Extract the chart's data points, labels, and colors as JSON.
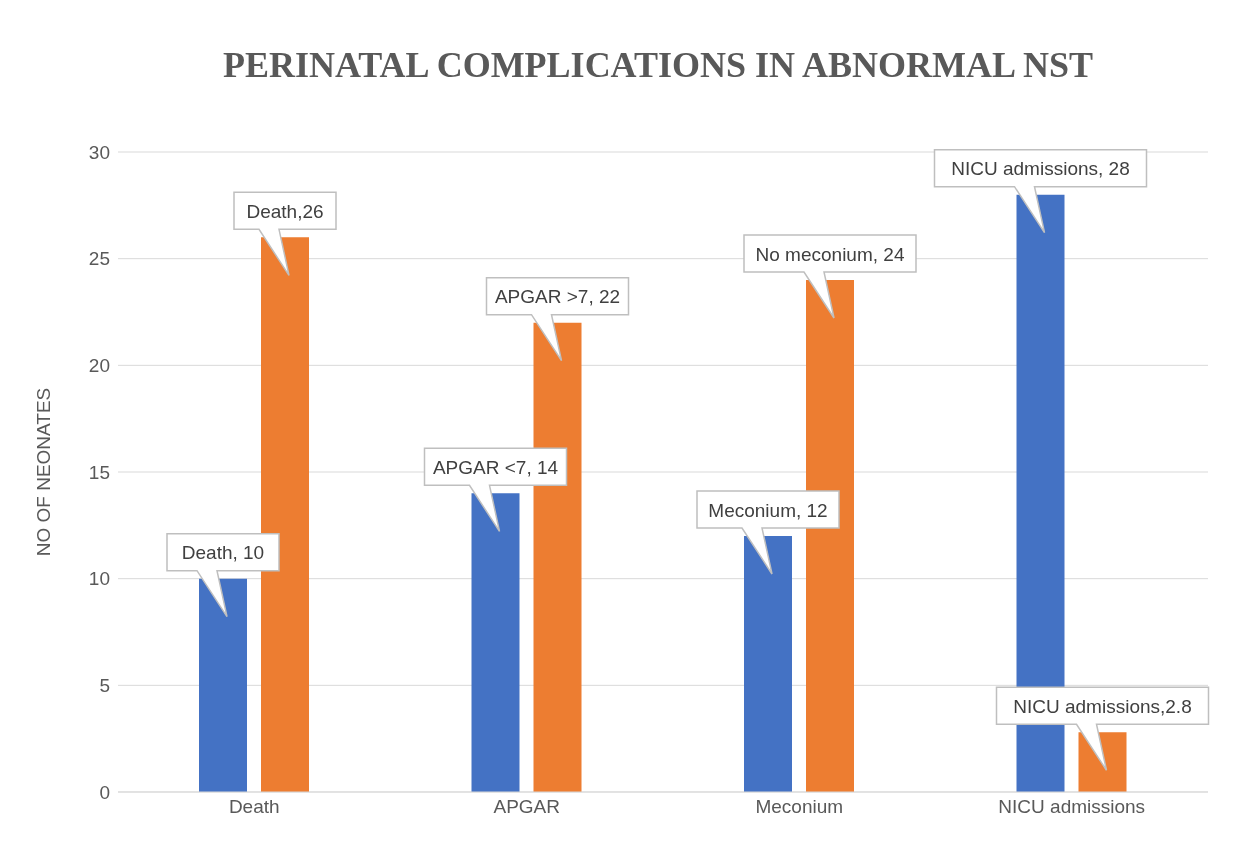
{
  "chart_data": {
    "type": "bar",
    "title": "PERINATAL COMPLICATIONS IN ABNORMAL NST",
    "ylabel": "NO OF NEONATES",
    "categories": [
      "Death",
      "APGAR",
      "Meconium",
      "NICU admissions"
    ],
    "series": [
      {
        "color": "#4472c4",
        "values": [
          10,
          14,
          12,
          28
        ],
        "value_labels": [
          "Death, 10",
          "APGAR <7, 14",
          "Meconium, 12",
          "NICU admissions, 28"
        ]
      },
      {
        "color": "#ed7d31",
        "values": [
          26,
          22,
          24,
          2.8
        ],
        "value_labels": [
          "Death,26",
          "APGAR >7, 22",
          "No meconium, 24",
          "NICU admissions,2.8"
        ]
      }
    ],
    "ylim": [
      0,
      30
    ],
    "yticks": [
      0,
      5,
      10,
      15,
      20,
      25,
      30
    ],
    "grid": "y"
  }
}
